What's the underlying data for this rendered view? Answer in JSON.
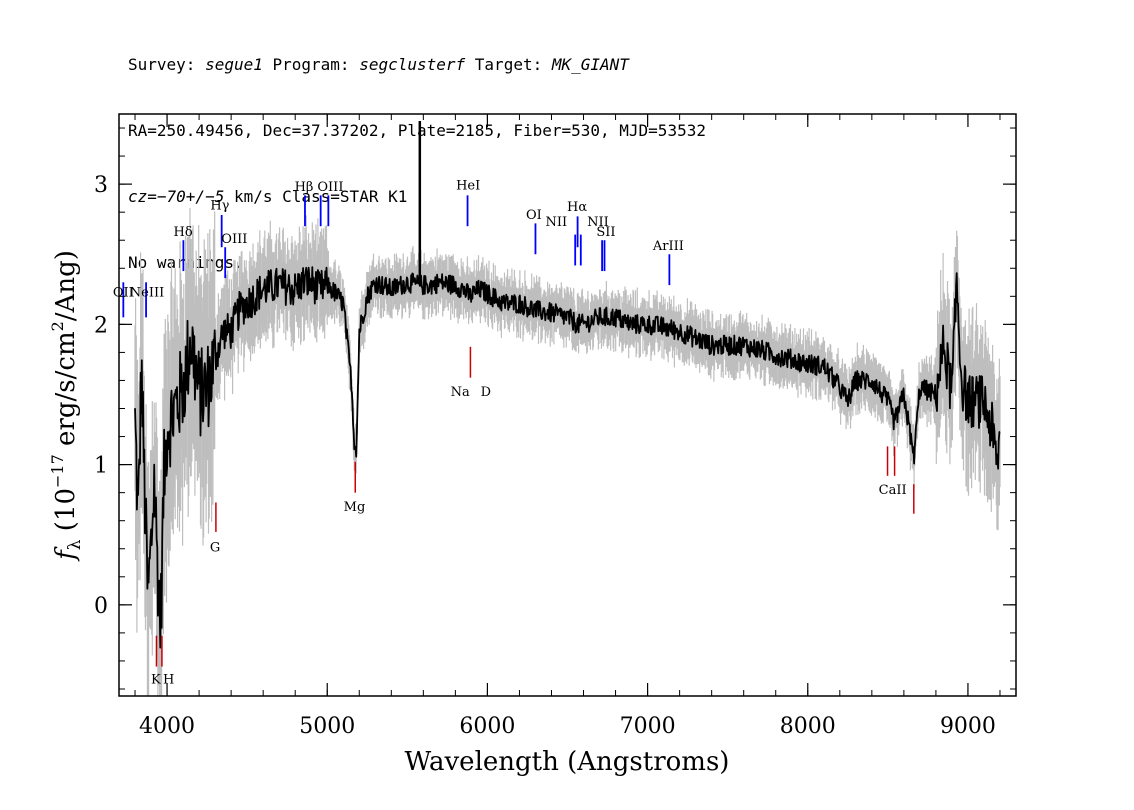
{
  "header": {
    "line1": {
      "survey_key": "Survey: ",
      "survey": "segue1",
      "program_key": " Program: ",
      "program": "segclusterf",
      "target_key": " Target: ",
      "target": "MK_GIANT"
    },
    "line2": "RA=250.49456, Dec=37.37202, Plate=2185, Fiber=530, MJD=53532",
    "line3": {
      "cz_key": "cz",
      "cz_value": "=−70+/−5",
      "rest": " km/s Class=STAR K1"
    },
    "line4": "No warnings."
  },
  "chart_data": {
    "type": "line",
    "xlabel": "Wavelength (Angstroms)",
    "ylabel_parts": {
      "flux_symbol": "f",
      "flux_subscript": "λ",
      "units_open": " (10",
      "exponent": "−17",
      "units_mid": " erg/s/cm",
      "area_exponent": "2",
      "units_close": "/Ang)"
    },
    "xlim": [
      3700,
      9300
    ],
    "ylim": [
      -0.65,
      3.5
    ],
    "x_ticks": [
      4000,
      5000,
      6000,
      7000,
      8000,
      9000
    ],
    "x_tick_labels": [
      "4000",
      "5000",
      "6000",
      "7000",
      "8000",
      "9000"
    ],
    "y_ticks": [
      0,
      1,
      2,
      3
    ],
    "y_tick_labels": [
      "0",
      "1",
      "2",
      "3"
    ],
    "x_minor_step": 200,
    "y_minor_step": 0.2,
    "colors": {
      "flux": "#000000",
      "error_envelope": "#bebebe",
      "emission": "#0000ff",
      "absorption": "#cc0000"
    },
    "series": [
      {
        "role": "flux",
        "x": [
          3800,
          3820,
          3840,
          3860,
          3880,
          3900,
          3920,
          3940,
          3960,
          3980,
          4000,
          4050,
          4100,
          4150,
          4200,
          4250,
          4300,
          4350,
          4400,
          4450,
          4500,
          4600,
          4700,
          4800,
          4850,
          4900,
          4950,
          5000,
          5050,
          5100,
          5150,
          5170,
          5183,
          5200,
          5250,
          5300,
          5400,
          5500,
          5580,
          5650,
          5700,
          5800,
          5850,
          5890,
          5950,
          6000,
          6100,
          6200,
          6300,
          6400,
          6500,
          6563,
          6600,
          6700,
          6800,
          6900,
          7000,
          7100,
          7200,
          7300,
          7400,
          7500,
          7600,
          7700,
          7800,
          7900,
          8000,
          8100,
          8200,
          8250,
          8300,
          8400,
          8500,
          8542,
          8600,
          8662,
          8700,
          8800,
          8850,
          8900,
          8930,
          8960,
          9000,
          9050,
          9100,
          9150,
          9180,
          9200
        ],
        "y": [
          1.3,
          0.6,
          1.7,
          0.8,
          0.05,
          0.4,
          0.9,
          0.3,
          -0.15,
          0.9,
          1.25,
          1.4,
          1.55,
          1.9,
          1.5,
          1.55,
          1.75,
          1.95,
          1.95,
          2.1,
          2.15,
          2.25,
          2.28,
          2.25,
          2.3,
          2.3,
          2.25,
          2.28,
          2.22,
          2.15,
          1.6,
          1.15,
          1.12,
          1.95,
          2.2,
          2.3,
          2.25,
          2.3,
          2.28,
          2.28,
          2.3,
          2.28,
          2.25,
          2.2,
          2.25,
          2.22,
          2.15,
          2.15,
          2.1,
          2.08,
          2.05,
          2.0,
          2.0,
          2.05,
          2.05,
          2.0,
          2.0,
          1.98,
          1.95,
          1.9,
          1.85,
          1.85,
          1.85,
          1.82,
          1.78,
          1.75,
          1.72,
          1.7,
          1.55,
          1.45,
          1.6,
          1.6,
          1.45,
          1.3,
          1.5,
          1.05,
          1.55,
          1.5,
          1.85,
          1.5,
          2.3,
          1.6,
          1.45,
          1.45,
          1.45,
          1.25,
          1.0,
          1.2
        ]
      }
    ],
    "spikes": [
      {
        "x": 5578,
        "y": 3.45
      }
    ],
    "emission_lines": [
      {
        "label": "OII",
        "x": 3727,
        "y_low": 2.05,
        "y_high": 2.3
      },
      {
        "label": "NeIII",
        "x": 3869,
        "y_low": 2.05,
        "y_high": 2.3
      },
      {
        "label": "Hδ",
        "x": 4102,
        "y_low": 2.38,
        "y_high": 2.6
      },
      {
        "label": "Hγ",
        "x": 4341,
        "y_low": 2.55,
        "y_high": 2.78
      },
      {
        "label": "OIII",
        "x": 4363,
        "y_low": 2.33,
        "y_high": 2.55
      },
      {
        "label": "Hβ",
        "x": 4861,
        "y_low": 2.7,
        "y_high": 2.92
      },
      {
        "label": "OIII",
        "x": 4959,
        "y_low": 2.7,
        "y_high": 2.92
      },
      {
        "label": "OIII",
        "x": 5007,
        "y_low": 2.7,
        "y_high": 2.92
      },
      {
        "label": "HeI",
        "x": 5876,
        "y_low": 2.7,
        "y_high": 2.92
      },
      {
        "label": "OI",
        "x": 6300,
        "y_low": 2.5,
        "y_high": 2.72
      },
      {
        "label": "NII",
        "x": 6548,
        "y_low": 2.42,
        "y_high": 2.64
      },
      {
        "label": "Hα",
        "x": 6563,
        "y_low": 2.55,
        "y_high": 2.77
      },
      {
        "label": "NII",
        "x": 6583,
        "y_low": 2.42,
        "y_high": 2.64
      },
      {
        "label": "SII",
        "x": 6716,
        "y_low": 2.38,
        "y_high": 2.6
      },
      {
        "label": "SII",
        "x": 6731,
        "y_low": 2.38,
        "y_high": 2.6
      },
      {
        "label": "ArIII",
        "x": 7136,
        "y_low": 2.28,
        "y_high": 2.5
      }
    ],
    "absorption_lines": [
      {
        "label": "K",
        "x": 3934,
        "y_low": -0.44,
        "y_high": -0.22
      },
      {
        "label": "H",
        "x": 3968,
        "y_low": -0.44,
        "y_high": -0.22
      },
      {
        "label": "G",
        "x": 4305,
        "y_low": 0.52,
        "y_high": 0.73
      },
      {
        "label": "Mg",
        "x": 5175,
        "y_low": 0.8,
        "y_high": 1.02
      },
      {
        "label": "Na",
        "x": 5894,
        "y_low": 1.62,
        "y_high": 1.84
      },
      {
        "label": "CaII",
        "x": 8498,
        "y_low": 0.92,
        "y_high": 1.13
      },
      {
        "label": "CaII",
        "x": 8542,
        "y_low": 0.92,
        "y_high": 1.13
      },
      {
        "label": "CaII",
        "x": 8662,
        "y_low": 0.65,
        "y_high": 0.86
      }
    ],
    "line_labels": [
      {
        "text": "OII",
        "x": 3727,
        "y": 2.2,
        "anchor": "middle"
      },
      {
        "text": "NeIII",
        "x": 3875,
        "y": 2.2,
        "anchor": "middle"
      },
      {
        "text": "Hδ",
        "x": 4100,
        "y": 2.63,
        "anchor": "middle"
      },
      {
        "text": "Hγ",
        "x": 4330,
        "y": 2.82,
        "anchor": "middle"
      },
      {
        "text": "OIII",
        "x": 4420,
        "y": 2.58,
        "anchor": "middle"
      },
      {
        "text": "Hβ",
        "x": 4855,
        "y": 2.95,
        "anchor": "middle"
      },
      {
        "text": "OIII",
        "x": 5020,
        "y": 2.95,
        "anchor": "middle"
      },
      {
        "text": "HeI",
        "x": 5880,
        "y": 2.96,
        "anchor": "middle"
      },
      {
        "text": "OI",
        "x": 6290,
        "y": 2.75,
        "anchor": "middle"
      },
      {
        "text": "NII",
        "x": 6430,
        "y": 2.7,
        "anchor": "middle"
      },
      {
        "text": "Hα",
        "x": 6560,
        "y": 2.81,
        "anchor": "middle"
      },
      {
        "text": "NII",
        "x": 6690,
        "y": 2.7,
        "anchor": "middle"
      },
      {
        "text": "SII",
        "x": 6740,
        "y": 2.63,
        "anchor": "middle"
      },
      {
        "text": "ArIII",
        "x": 7130,
        "y": 2.53,
        "anchor": "middle"
      },
      {
        "text": "Na",
        "x": 5830,
        "y": 1.49,
        "anchor": "middle"
      },
      {
        "text": "D",
        "x": 5990,
        "y": 1.49,
        "anchor": "middle"
      },
      {
        "text": "Mg",
        "x": 5170,
        "y": 0.67,
        "anchor": "middle"
      },
      {
        "text": "G",
        "x": 4300,
        "y": 0.38,
        "anchor": "middle"
      },
      {
        "text": "K",
        "x": 3930,
        "y": -0.56,
        "anchor": "middle"
      },
      {
        "text": "H",
        "x": 4010,
        "y": -0.56,
        "anchor": "middle"
      },
      {
        "text": "CaII",
        "x": 8530,
        "y": 0.79,
        "anchor": "middle"
      }
    ]
  }
}
